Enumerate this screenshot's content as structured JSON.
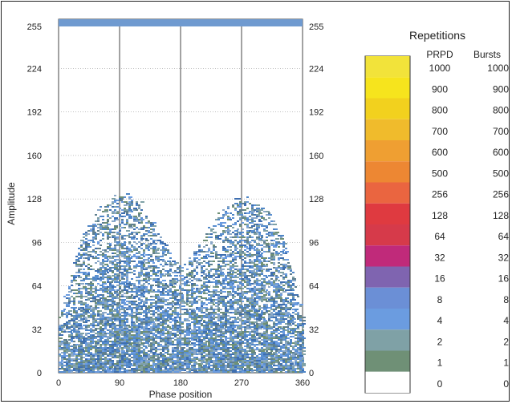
{
  "chart_data": {
    "type": "heatmap",
    "title": "",
    "xlabel": "Phase position",
    "ylabel": "Amplitude",
    "xlim": [
      0,
      360
    ],
    "ylim": [
      0,
      255
    ],
    "x_ticks": [
      0,
      90,
      180,
      270,
      360
    ],
    "y_ticks": [
      0,
      32,
      64,
      96,
      128,
      160,
      192,
      224,
      255
    ],
    "grid": true,
    "envelope": {
      "description_points_phase": [
        0,
        30,
        60,
        90,
        120,
        150,
        180,
        210,
        240,
        270,
        300,
        330,
        360
      ],
      "max_amplitude": [
        40,
        96,
        120,
        132,
        124,
        100,
        78,
        96,
        120,
        128,
        122,
        100,
        44
      ]
    },
    "legend": {
      "title": "Repetitions",
      "position": "right",
      "columns": [
        "PRPD",
        "Bursts"
      ],
      "prpd_values": [
        "1000",
        "900",
        "800",
        "700",
        "600",
        "500",
        "256",
        "128",
        "64",
        "32",
        "16",
        "8",
        "4",
        "2",
        "1",
        "0"
      ],
      "burst_values": [
        "1000",
        "900",
        "800",
        "700",
        "600",
        "500",
        "256",
        "128",
        "64",
        "32",
        "16",
        "8",
        "4",
        "2",
        "1",
        "0"
      ],
      "colors": [
        "#f2e33a",
        "#f6e41d",
        "#f2d11e",
        "#f0bb2c",
        "#ef9f32",
        "#ed8733",
        "#ea6540",
        "#df3a40",
        "#d63a4a",
        "#c02a7a",
        "#7f64b0",
        "#6b8fd6",
        "#6b9ce0",
        "#7fa1a6",
        "#6f9076",
        "#ffffff"
      ]
    }
  }
}
